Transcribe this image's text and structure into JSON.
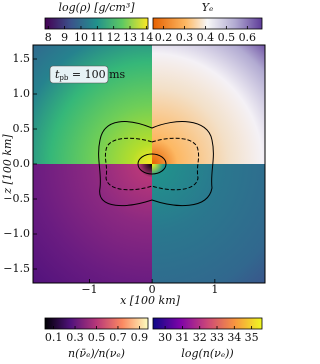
{
  "chart_data": {
    "type": "quadrant-map",
    "xlabel": "x [100 km]",
    "ylabel": "z [100 km]",
    "annotation": {
      "symbol": "t",
      "subscript": "pb",
      "text": " = 100 ms"
    },
    "xlim": [
      -1.9,
      1.8
    ],
    "xticks": [
      {
        "value": -1,
        "label": "−1"
      },
      0,
      1
    ],
    "ylim": [
      -1.7,
      1.7
    ],
    "yticks": [
      {
        "value": -1.5,
        "label": "−1.5"
      },
      {
        "value": -1,
        "label": "−1.0"
      },
      {
        "value": -0.5,
        "label": "−0.5"
      },
      {
        "value": 0,
        "label": "0.0"
      },
      0.5,
      {
        "value": 1,
        "label": "1.0"
      },
      1.5
    ],
    "colorbars": [
      {
        "label": "log(ρ) [g/cm³]",
        "colormap": "viridis",
        "lim": [
          7.8,
          14.1
        ],
        "ticks": [
          8,
          9,
          10,
          11,
          12,
          13,
          14
        ],
        "position": "top-left"
      },
      {
        "label": "Yₑ",
        "colormap": "puor",
        "lim": [
          0.15,
          0.67
        ],
        "ticks": [
          0.2,
          0.3,
          0.4,
          0.5,
          0.6
        ],
        "position": "top-right"
      },
      {
        "label": "n(ν̄ₑ)/n(νₑ)",
        "colormap": "magma",
        "lim": [
          0.02,
          0.98
        ],
        "ticks": [
          0.1,
          0.3,
          0.5,
          0.7,
          0.9
        ],
        "position": "bottom-left"
      },
      {
        "label": "log(n(νₑ))",
        "colormap": "plasma",
        "lim": [
          29.3,
          35.6
        ],
        "ticks": [
          30,
          31,
          32,
          33,
          34,
          35
        ],
        "position": "bottom-right"
      }
    ]
  }
}
